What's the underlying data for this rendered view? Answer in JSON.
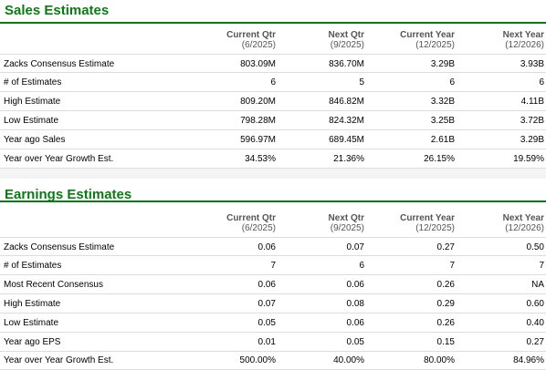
{
  "sales": {
    "title": "Sales Estimates",
    "columns": [
      {
        "label": "Current Qtr",
        "period": "(6/2025)"
      },
      {
        "label": "Next Qtr",
        "period": "(9/2025)"
      },
      {
        "label": "Current Year",
        "period": "(12/2025)"
      },
      {
        "label": "Next Year",
        "period": "(12/2026)"
      }
    ],
    "rows": [
      {
        "label": "Zacks Consensus Estimate",
        "values": [
          "803.09M",
          "836.70M",
          "3.29B",
          "3.93B"
        ]
      },
      {
        "label": "# of Estimates",
        "values": [
          "6",
          "5",
          "6",
          "6"
        ]
      },
      {
        "label": "High Estimate",
        "values": [
          "809.20M",
          "846.82M",
          "3.32B",
          "4.11B"
        ]
      },
      {
        "label": "Low Estimate",
        "values": [
          "798.28M",
          "824.32M",
          "3.25B",
          "3.72B"
        ]
      },
      {
        "label": "Year ago Sales",
        "values": [
          "596.97M",
          "689.45M",
          "2.61B",
          "3.29B"
        ]
      },
      {
        "label": "Year over Year Growth Est.",
        "values": [
          "34.53%",
          "21.36%",
          "26.15%",
          "19.59%"
        ]
      }
    ]
  },
  "earnings": {
    "title": "Earnings Estimates",
    "columns": [
      {
        "label": "Current Qtr",
        "period": "(6/2025)"
      },
      {
        "label": "Next Qtr",
        "period": "(9/2025)"
      },
      {
        "label": "Current Year",
        "period": "(12/2025)"
      },
      {
        "label": "Next Year",
        "period": "(12/2026)"
      }
    ],
    "rows": [
      {
        "label": "Zacks Consensus Estimate",
        "values": [
          "0.06",
          "0.07",
          "0.27",
          "0.50"
        ]
      },
      {
        "label": "# of Estimates",
        "values": [
          "7",
          "6",
          "7",
          "7"
        ]
      },
      {
        "label": "Most Recent Consensus",
        "values": [
          "0.06",
          "0.06",
          "0.26",
          "NA"
        ]
      },
      {
        "label": "High Estimate",
        "values": [
          "0.07",
          "0.08",
          "0.29",
          "0.60"
        ]
      },
      {
        "label": "Low Estimate",
        "values": [
          "0.05",
          "0.06",
          "0.26",
          "0.40"
        ]
      },
      {
        "label": "Year ago EPS",
        "values": [
          "0.01",
          "0.05",
          "0.15",
          "0.27"
        ]
      },
      {
        "label": "Year over Year Growth Est.",
        "values": [
          "500.00%",
          "40.00%",
          "80.00%",
          "84.96%"
        ]
      }
    ]
  },
  "colors": {
    "title_green": "#0b7a14",
    "rule_green": "#0d7a17",
    "row_shade": "#f4f4f4",
    "row_border": "#dcdcdc"
  }
}
